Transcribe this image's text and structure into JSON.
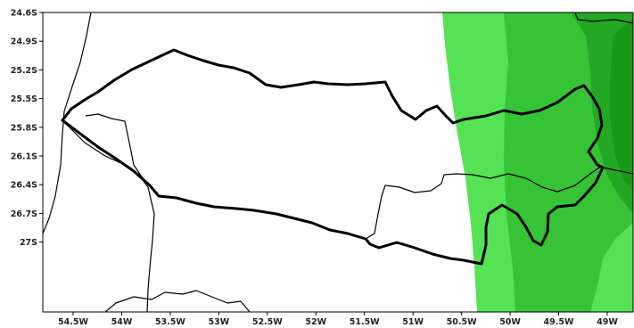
{
  "map": {
    "lat_labels": [
      "24.6S",
      "24.9S",
      "25.2S",
      "25.5S",
      "25.8S",
      "26.1S",
      "26.4S",
      "26.7S",
      "27S"
    ],
    "lon_labels": [
      "54.5W",
      "54W",
      "53.5W",
      "53W",
      "52.5W",
      "52W",
      "51.5W",
      "51W",
      "50.5W",
      "50W",
      "49.5W",
      "49W"
    ],
    "colors": {
      "background": "#ffffff",
      "shade_light": "#55e355",
      "shade_medium": "#36c336",
      "shade_dark": "#23a823",
      "shade_darkest": "#159a15",
      "boundary": "#000000"
    }
  }
}
